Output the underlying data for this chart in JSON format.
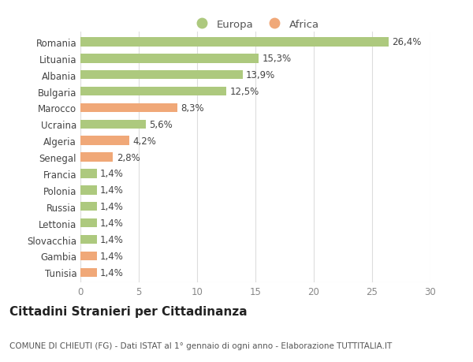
{
  "categories": [
    "Romania",
    "Lituania",
    "Albania",
    "Bulgaria",
    "Marocco",
    "Ucraina",
    "Algeria",
    "Senegal",
    "Francia",
    "Polonia",
    "Russia",
    "Lettonia",
    "Slovacchia",
    "Gambia",
    "Tunisia"
  ],
  "values": [
    26.4,
    15.3,
    13.9,
    12.5,
    8.3,
    5.6,
    4.2,
    2.8,
    1.4,
    1.4,
    1.4,
    1.4,
    1.4,
    1.4,
    1.4
  ],
  "labels": [
    "26,4%",
    "15,3%",
    "13,9%",
    "12,5%",
    "8,3%",
    "5,6%",
    "4,2%",
    "2,8%",
    "1,4%",
    "1,4%",
    "1,4%",
    "1,4%",
    "1,4%",
    "1,4%",
    "1,4%"
  ],
  "continents": [
    "Europa",
    "Europa",
    "Europa",
    "Europa",
    "Africa",
    "Europa",
    "Africa",
    "Africa",
    "Europa",
    "Europa",
    "Europa",
    "Europa",
    "Europa",
    "Africa",
    "Africa"
  ],
  "color_europa": "#adc97e",
  "color_africa": "#f0a878",
  "bg_color": "#ffffff",
  "grid_color": "#dddddd",
  "xlim": [
    0,
    30
  ],
  "xticks": [
    0,
    5,
    10,
    15,
    20,
    25,
    30
  ],
  "title": "Cittadini Stranieri per Cittadinanza",
  "subtitle": "COMUNE DI CHIEUTI (FG) - Dati ISTAT al 1° gennaio di ogni anno - Elaborazione TUTTITALIA.IT",
  "legend_europa": "Europa",
  "legend_africa": "Africa",
  "bar_height": 0.55,
  "label_fontsize": 8.5,
  "tick_fontsize": 8.5,
  "title_fontsize": 11,
  "subtitle_fontsize": 7.5
}
